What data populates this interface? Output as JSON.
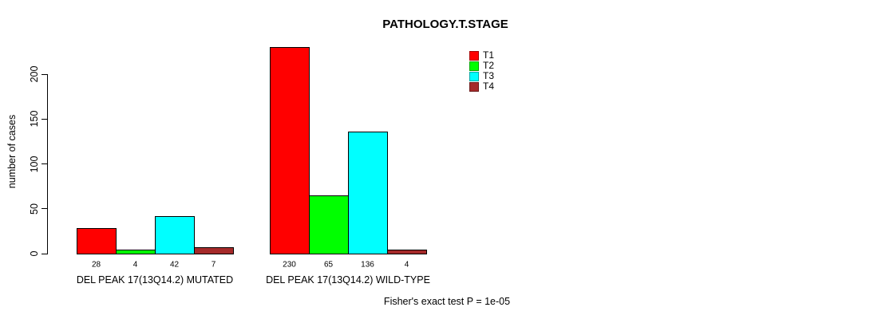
{
  "chart_data": {
    "type": "bar",
    "title": "PATHOLOGY.T.STAGE",
    "xlabel": "",
    "ylabel": "number of cases",
    "ylim": [
      0,
      232
    ],
    "yticks": [
      0,
      50,
      100,
      150,
      200
    ],
    "grid": false,
    "legend_position": "top-right-inside",
    "categories": [
      "DEL PEAK 17(13Q14.2) MUTATED",
      "DEL PEAK 17(13Q14.2) WILD-TYPE"
    ],
    "series": [
      {
        "name": "T1",
        "color": "#ff0000",
        "values": [
          28,
          230
        ]
      },
      {
        "name": "T2",
        "color": "#00ff00",
        "values": [
          4,
          65
        ]
      },
      {
        "name": "T3",
        "color": "#00ffff",
        "values": [
          42,
          136
        ]
      },
      {
        "name": "T4",
        "color": "#a52a2a",
        "values": [
          7,
          4
        ]
      }
    ],
    "bar_value_labels": [
      [
        "28",
        "4",
        "42",
        "7"
      ],
      [
        "230",
        "65",
        "136",
        "4"
      ]
    ],
    "annotation": "Fisher's exact test P = 1e-05"
  }
}
